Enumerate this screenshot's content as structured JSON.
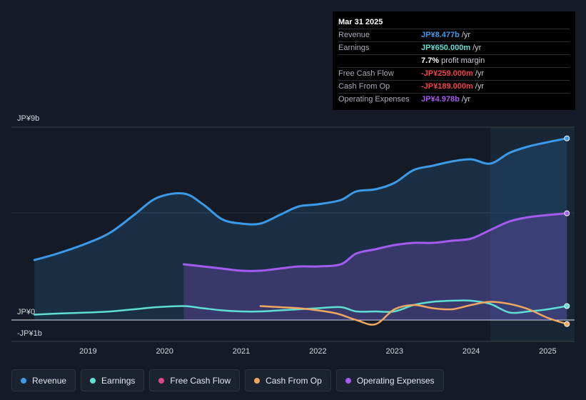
{
  "tooltip": {
    "date": "Mar 31 2025",
    "rows": [
      {
        "label": "Revenue",
        "value": "JP¥8.477b",
        "unit": "/yr",
        "color": "#3b9be8"
      },
      {
        "label": "Earnings",
        "value": "JP¥650.000m",
        "unit": "/yr",
        "color": "#5fe0d5"
      },
      {
        "label": "",
        "value": "7.7%",
        "unit": "profit margin",
        "color": "#ffffff"
      },
      {
        "label": "Free Cash Flow",
        "value": "-JP¥259.000m",
        "unit": "/yr",
        "color": "#f0434a"
      },
      {
        "label": "Cash From Op",
        "value": "-JP¥189.000m",
        "unit": "/yr",
        "color": "#f0434a"
      },
      {
        "label": "Operating Expenses",
        "value": "JP¥4.978b",
        "unit": "/yr",
        "color": "#a45cf0"
      }
    ]
  },
  "legend": [
    {
      "label": "Revenue",
      "color": "#3b9be8"
    },
    {
      "label": "Earnings",
      "color": "#5fe0d5"
    },
    {
      "label": "Free Cash Flow",
      "color": "#d9488a"
    },
    {
      "label": "Cash From Op",
      "color": "#f0a860"
    },
    {
      "label": "Operating Expenses",
      "color": "#a45cf0"
    }
  ],
  "chart_data": {
    "type": "line",
    "ylabel_top": "JP¥9b",
    "ylabel_zero": "JP¥0",
    "ylabel_bottom": "-JP¥1b",
    "ylim": [
      -1,
      9
    ],
    "xlim": [
      2018.0,
      2025.35
    ],
    "x_ticks": [
      "2019",
      "2020",
      "2021",
      "2022",
      "2023",
      "2024",
      "2025"
    ],
    "x_tick_values": [
      2019.0,
      2020.0,
      2021.0,
      2022.0,
      2023.0,
      2024.0,
      2025.0
    ],
    "forecast_start": 2024.25,
    "series": [
      {
        "name": "Revenue",
        "color": "#3b9be8",
        "fill": true,
        "x": [
          2018.3,
          2018.6,
          2019.0,
          2019.3,
          2019.6,
          2019.9,
          2020.25,
          2020.5,
          2020.75,
          2021.0,
          2021.25,
          2021.5,
          2021.75,
          2022.0,
          2022.3,
          2022.5,
          2022.75,
          2023.0,
          2023.25,
          2023.5,
          2023.75,
          2024.0,
          2024.25,
          2024.5,
          2024.75,
          2025.0,
          2025.25
        ],
        "values": [
          2.8,
          3.1,
          3.6,
          4.1,
          4.9,
          5.7,
          5.9,
          5.4,
          4.7,
          4.5,
          4.5,
          4.9,
          5.3,
          5.4,
          5.6,
          6.0,
          6.1,
          6.4,
          7.0,
          7.2,
          7.4,
          7.5,
          7.3,
          7.8,
          8.1,
          8.3,
          8.477
        ]
      },
      {
        "name": "Operating Expenses",
        "color": "#a45cf0",
        "fill": true,
        "x": [
          2020.25,
          2020.5,
          2020.75,
          2021.0,
          2021.25,
          2021.5,
          2021.75,
          2022.0,
          2022.3,
          2022.5,
          2022.75,
          2023.0,
          2023.25,
          2023.5,
          2023.75,
          2024.0,
          2024.25,
          2024.5,
          2024.75,
          2025.0,
          2025.25
        ],
        "values": [
          2.6,
          2.5,
          2.4,
          2.3,
          2.3,
          2.4,
          2.5,
          2.5,
          2.6,
          3.1,
          3.3,
          3.5,
          3.6,
          3.6,
          3.7,
          3.8,
          4.2,
          4.6,
          4.8,
          4.9,
          4.978
        ]
      },
      {
        "name": "Earnings",
        "color": "#5fe0d5",
        "fill": false,
        "x": [
          2018.3,
          2018.6,
          2019.0,
          2019.3,
          2019.6,
          2019.9,
          2020.25,
          2020.5,
          2020.75,
          2021.0,
          2021.25,
          2021.5,
          2021.75,
          2022.0,
          2022.3,
          2022.5,
          2022.75,
          2023.0,
          2023.25,
          2023.5,
          2023.75,
          2024.0,
          2024.25,
          2024.5,
          2024.75,
          2025.0,
          2025.25
        ],
        "values": [
          0.25,
          0.3,
          0.35,
          0.4,
          0.5,
          0.6,
          0.65,
          0.55,
          0.45,
          0.4,
          0.4,
          0.45,
          0.5,
          0.55,
          0.6,
          0.4,
          0.4,
          0.4,
          0.7,
          0.85,
          0.9,
          0.9,
          0.75,
          0.35,
          0.4,
          0.5,
          0.65
        ]
      },
      {
        "name": "Cash From Op",
        "color": "#f0a860",
        "fill": false,
        "x": [
          2021.25,
          2021.5,
          2021.75,
          2022.0,
          2022.25,
          2022.5,
          2022.75,
          2023.0,
          2023.25,
          2023.5,
          2023.75,
          2024.0,
          2024.25,
          2024.5,
          2024.75,
          2025.0,
          2025.25
        ],
        "values": [
          0.65,
          0.6,
          0.55,
          0.45,
          0.3,
          0.0,
          -0.2,
          0.5,
          0.7,
          0.55,
          0.5,
          0.7,
          0.85,
          0.75,
          0.5,
          0.1,
          -0.189
        ]
      }
    ]
  }
}
